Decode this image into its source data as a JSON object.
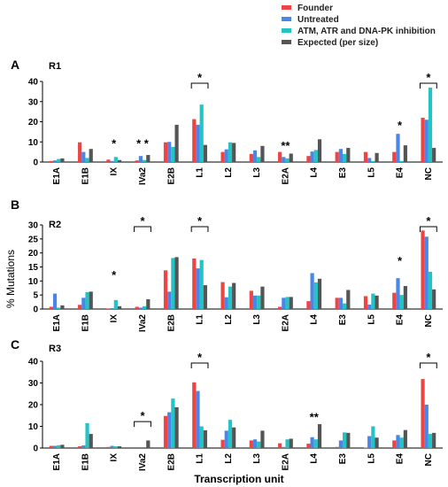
{
  "legend": {
    "position": "top-right",
    "entries": [
      {
        "label": "Founder",
        "color": "#EE4444"
      },
      {
        "label": "Untreated",
        "color": "#4A86E8"
      },
      {
        "label": "ATM, ATR and DNA-PK inhibition",
        "color": "#22C4C4"
      },
      {
        "label": "Expected (per size)",
        "color": "#555555"
      }
    ]
  },
  "figure": {
    "ylabel": "% Mutations",
    "xlabel": "Transcription unit"
  },
  "chart_data": [
    {
      "type": "bar",
      "panel_letter": "A",
      "panel_title": "R1",
      "categories": [
        "E1A",
        "E1B",
        "IX",
        "IVa2",
        "E2B",
        "L1",
        "L2",
        "L3",
        "E2A",
        "L4",
        "E3",
        "L5",
        "E4",
        "NC"
      ],
      "ylim": [
        0,
        40
      ],
      "yticks": [
        0,
        10,
        20,
        30,
        40
      ],
      "grid": false,
      "series": [
        {
          "name": "Founder",
          "values": [
            0.5,
            9.8,
            1.2,
            0.8,
            9.8,
            21.3,
            5.0,
            4.0,
            5.0,
            3.0,
            5.0,
            5.0,
            5.0,
            22.0
          ]
        },
        {
          "name": "Untreated",
          "values": [
            0.8,
            5.0,
            0.5,
            3.0,
            10.0,
            18.5,
            6.3,
            5.8,
            2.5,
            5.2,
            6.5,
            2.0,
            14.0,
            21.0
          ]
        },
        {
          "name": "ATM, ATR and DNA-PK inhibition",
          "values": [
            1.5,
            2.0,
            2.5,
            1.0,
            7.5,
            28.5,
            9.8,
            2.5,
            1.8,
            6.0,
            4.0,
            0.5,
            0.5,
            37.0
          ]
        },
        {
          "name": "Expected (per size)",
          "values": [
            1.8,
            6.5,
            1.0,
            3.5,
            18.5,
            8.5,
            9.5,
            8.0,
            4.2,
            11.3,
            7.0,
            4.5,
            8.3,
            7.0
          ]
        }
      ],
      "annotations": [
        {
          "text": "*",
          "category": "IX",
          "y": 9
        },
        {
          "text": "* *",
          "category": "IVa2",
          "y": 9
        },
        {
          "text": "*",
          "bracket": [
            "L1"
          ],
          "y": 40
        },
        {
          "text": "**",
          "category": "E2A",
          "y": 8
        },
        {
          "text": "*",
          "category": "E4",
          "y": 18
        },
        {
          "text": "*",
          "bracket": [
            "NC"
          ],
          "y": 40
        }
      ]
    },
    {
      "type": "bar",
      "panel_letter": "B",
      "panel_title": "R2",
      "categories": [
        "E1A",
        "E1B",
        "IX",
        "IVa2",
        "E2B",
        "L1",
        "L2",
        "L3",
        "E2A",
        "L4",
        "E3",
        "L5",
        "E4",
        "NC"
      ],
      "ylim": [
        0,
        30
      ],
      "yticks": [
        0,
        5,
        10,
        15,
        20,
        25,
        30
      ],
      "grid": false,
      "series": [
        {
          "name": "Founder",
          "values": [
            0.8,
            1.5,
            0.2,
            0.8,
            13.8,
            18.0,
            9.6,
            6.5,
            0.8,
            2.8,
            4.0,
            4.6,
            5.8,
            28.0
          ]
        },
        {
          "name": "Untreated",
          "values": [
            5.5,
            4.0,
            0.3,
            0.5,
            6.2,
            14.5,
            4.2,
            4.8,
            4.0,
            12.8,
            4.0,
            1.6,
            11.0,
            25.8
          ]
        },
        {
          "name": "ATM, ATR and DNA-PK inhibition",
          "values": [
            0.5,
            6.0,
            3.2,
            1.0,
            18.2,
            17.5,
            8.0,
            4.8,
            4.3,
            9.5,
            2.0,
            5.5,
            5.0,
            13.3
          ]
        },
        {
          "name": "Expected (per size)",
          "values": [
            1.3,
            6.2,
            1.0,
            3.5,
            18.5,
            8.5,
            9.3,
            8.0,
            4.3,
            10.8,
            6.8,
            4.8,
            8.2,
            7.0
          ]
        }
      ],
      "annotations": [
        {
          "text": "*",
          "bracket": [
            "IVa2"
          ],
          "y": 30
        },
        {
          "text": "*",
          "bracket": [
            "L1"
          ],
          "y": 30
        },
        {
          "text": "*",
          "category": "IX",
          "y": 12
        },
        {
          "text": "*",
          "category": "E4",
          "y": 17
        },
        {
          "text": "*",
          "bracket": [
            "NC"
          ],
          "y": 30
        }
      ]
    },
    {
      "type": "bar",
      "panel_letter": "C",
      "panel_title": "R3",
      "categories": [
        "E1A",
        "E1B",
        "IX",
        "IVa2",
        "E2B",
        "L1",
        "L2",
        "L3",
        "E2A",
        "L4",
        "E3",
        "L5",
        "E4",
        "NC"
      ],
      "ylim": [
        0,
        40
      ],
      "yticks": [
        0,
        10,
        20,
        30,
        40
      ],
      "grid": false,
      "series": [
        {
          "name": "Founder",
          "values": [
            1.0,
            0.8,
            0.5,
            0.0,
            14.8,
            30.3,
            3.8,
            3.5,
            2.2,
            2.0,
            0.5,
            0.2,
            3.5,
            31.8
          ]
        },
        {
          "name": "Untreated",
          "values": [
            1.0,
            1.2,
            1.0,
            0.0,
            16.5,
            26.3,
            8.0,
            4.0,
            0.5,
            5.0,
            3.5,
            5.5,
            6.0,
            20.0
          ]
        },
        {
          "name": "ATM, ATR and DNA-PK inhibition",
          "values": [
            1.3,
            11.5,
            0.8,
            0.0,
            22.8,
            10.0,
            13.0,
            3.0,
            4.0,
            4.0,
            7.2,
            10.0,
            4.8,
            6.5
          ]
        },
        {
          "name": "Expected (per size)",
          "values": [
            1.5,
            6.5,
            0.8,
            3.5,
            18.8,
            8.2,
            9.5,
            8.0,
            4.3,
            11.0,
            7.0,
            4.8,
            8.3,
            7.0
          ]
        }
      ],
      "annotations": [
        {
          "text": "*",
          "bracket": [
            "IVa2"
          ],
          "y": 13
        },
        {
          "text": "*",
          "bracket": [
            "L1"
          ],
          "y": 40
        },
        {
          "text": "**",
          "category": "L4",
          "y": 14
        },
        {
          "text": "*",
          "bracket": [
            "NC"
          ],
          "y": 40
        }
      ]
    }
  ]
}
